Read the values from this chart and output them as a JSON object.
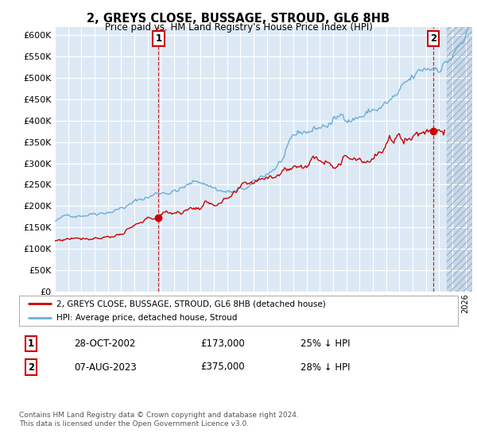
{
  "title": "2, GREYS CLOSE, BUSSAGE, STROUD, GL6 8HB",
  "subtitle": "Price paid vs. HM Land Registry's House Price Index (HPI)",
  "ylabel_ticks": [
    "£0",
    "£50K",
    "£100K",
    "£150K",
    "£200K",
    "£250K",
    "£300K",
    "£350K",
    "£400K",
    "£450K",
    "£500K",
    "£550K",
    "£600K"
  ],
  "ytick_values": [
    0,
    50000,
    100000,
    150000,
    200000,
    250000,
    300000,
    350000,
    400000,
    450000,
    500000,
    550000,
    600000
  ],
  "ylim": [
    0,
    620000
  ],
  "xlim_start": 1995.0,
  "xlim_end": 2026.5,
  "future_start": 2024.58,
  "transaction1_date": 2002.83,
  "transaction1_price": 173000,
  "transaction1_label": "1",
  "transaction2_date": 2023.58,
  "transaction2_price": 375000,
  "transaction2_label": "2",
  "legend_line1": "2, GREYS CLOSE, BUSSAGE, STROUD, GL6 8HB (detached house)",
  "legend_line2": "HPI: Average price, detached house, Stroud",
  "table_row1_num": "1",
  "table_row1_date": "28-OCT-2002",
  "table_row1_price": "£173,000",
  "table_row1_hpi": "25% ↓ HPI",
  "table_row2_num": "2",
  "table_row2_date": "07-AUG-2023",
  "table_row2_price": "£375,000",
  "table_row2_hpi": "28% ↓ HPI",
  "footnote": "Contains HM Land Registry data © Crown copyright and database right 2024.\nThis data is licensed under the Open Government Licence v3.0.",
  "hpi_color": "#6baed6",
  "price_color": "#cc0000",
  "bg_color": "#dce9f5",
  "grid_color": "#ffffff"
}
